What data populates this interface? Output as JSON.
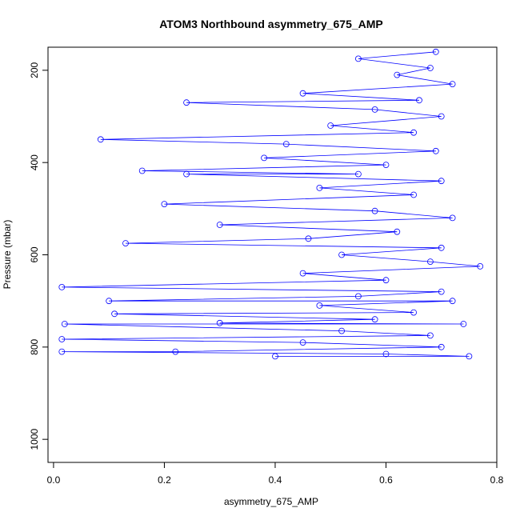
{
  "chart_data": {
    "type": "scatter",
    "title": "ATOM3 Northbound asymmetry_675_AMP",
    "xlabel": "asymmetry_675_AMP",
    "ylabel": "Pressure (mbar)",
    "xlim": [
      -0.01,
      0.8
    ],
    "ylim": [
      1050,
      150
    ],
    "y_reversed": true,
    "x_ticks": [
      0.0,
      0.2,
      0.4,
      0.6,
      0.8
    ],
    "x_tick_labels": [
      "0.0",
      "0.2",
      "0.4",
      "0.6",
      "0.8"
    ],
    "y_ticks": [
      200,
      400,
      600,
      800,
      1000
    ],
    "y_tick_labels": [
      "200",
      "400",
      "600",
      "800",
      "1000"
    ],
    "grid": false,
    "series_color": "#0000ff",
    "marker": "open-circle",
    "connected": true,
    "series": [
      {
        "values": [
          [
            0.69,
            160
          ],
          [
            0.55,
            175
          ],
          [
            0.68,
            195
          ],
          [
            0.62,
            210
          ],
          [
            0.72,
            230
          ],
          [
            0.45,
            250
          ],
          [
            0.66,
            265
          ],
          [
            0.24,
            270
          ],
          [
            0.58,
            285
          ],
          [
            0.7,
            300
          ],
          [
            0.5,
            320
          ],
          [
            0.65,
            335
          ],
          [
            0.085,
            350
          ],
          [
            0.42,
            360
          ],
          [
            0.69,
            375
          ],
          [
            0.38,
            390
          ],
          [
            0.6,
            405
          ],
          [
            0.16,
            418
          ],
          [
            0.55,
            425
          ],
          [
            0.24,
            425
          ],
          [
            0.7,
            440
          ],
          [
            0.48,
            455
          ],
          [
            0.65,
            470
          ],
          [
            0.2,
            490
          ],
          [
            0.58,
            505
          ],
          [
            0.72,
            520
          ],
          [
            0.3,
            535
          ],
          [
            0.62,
            550
          ],
          [
            0.46,
            565
          ],
          [
            0.13,
            575
          ],
          [
            0.7,
            585
          ],
          [
            0.52,
            600
          ],
          [
            0.68,
            615
          ],
          [
            0.77,
            625
          ],
          [
            0.45,
            640
          ],
          [
            0.6,
            655
          ],
          [
            0.015,
            670
          ],
          [
            0.7,
            680
          ],
          [
            0.55,
            690
          ],
          [
            0.1,
            700
          ],
          [
            0.72,
            700
          ],
          [
            0.48,
            710
          ],
          [
            0.65,
            725
          ],
          [
            0.11,
            728
          ],
          [
            0.58,
            740
          ],
          [
            0.3,
            748
          ],
          [
            0.74,
            750
          ],
          [
            0.02,
            750
          ],
          [
            0.52,
            765
          ],
          [
            0.68,
            775
          ],
          [
            0.015,
            783
          ],
          [
            0.45,
            790
          ],
          [
            0.7,
            800
          ],
          [
            0.22,
            810
          ],
          [
            0.015,
            810
          ],
          [
            0.6,
            815
          ],
          [
            0.75,
            820
          ],
          [
            0.4,
            820
          ]
        ]
      }
    ]
  }
}
